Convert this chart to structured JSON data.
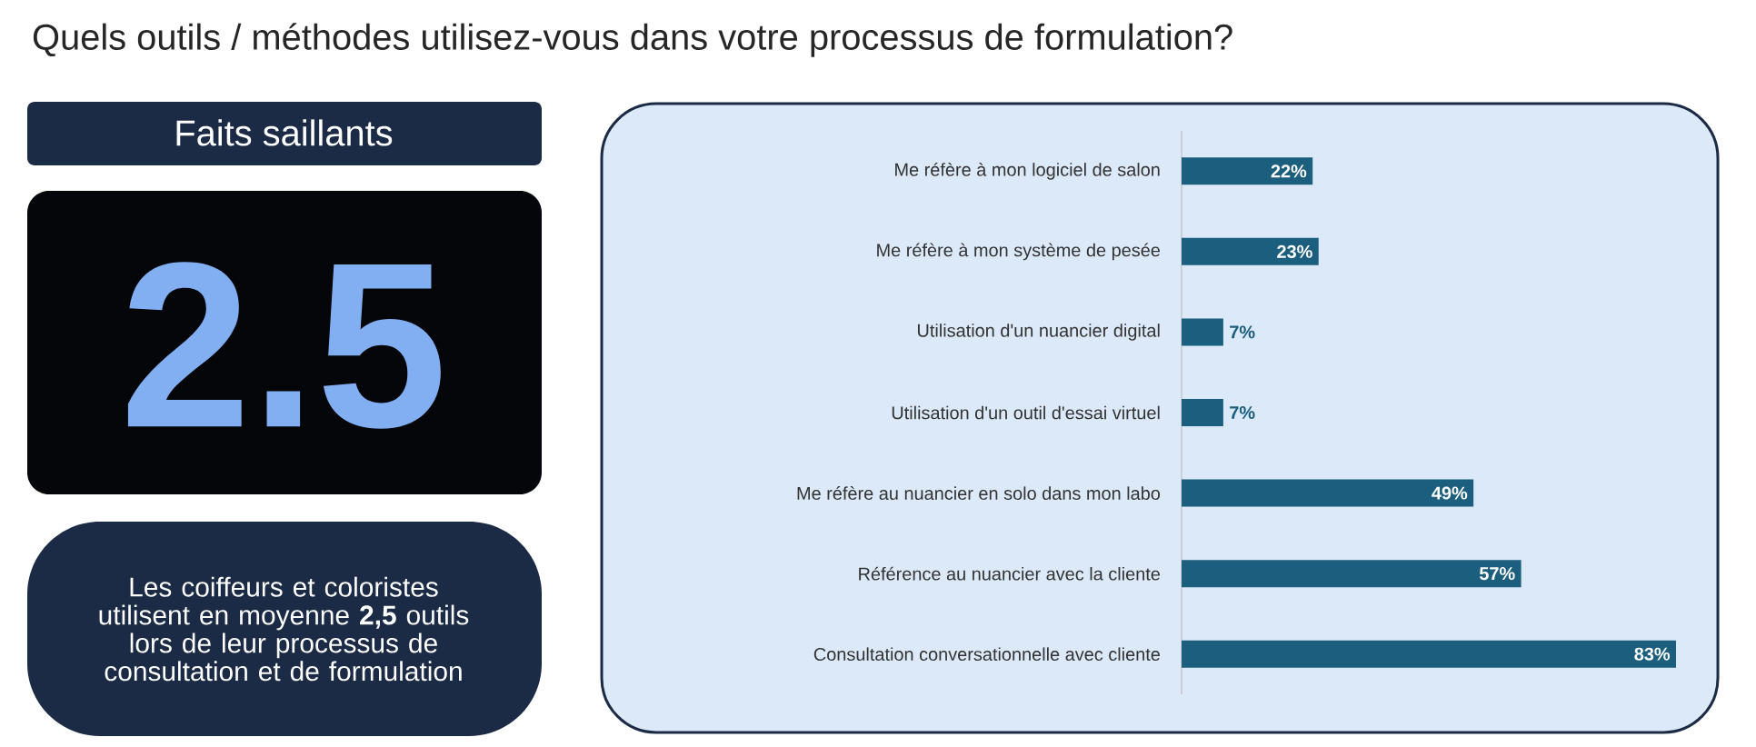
{
  "chart_data": {
    "type": "bar",
    "orientation": "horizontal",
    "title": "Quels outils / méthodes utilisez-vous dans votre processus de formulation?",
    "annotations": [
      "Faits saillants",
      "2.5",
      "Les coiffeurs et coloristes utilisent en moyenne **2,5** outils lors de leur processus de consultation et de formulation"
    ],
    "categories": [
      "Me réfère à mon logiciel de salon",
      "Me réfère à mon système de pesée",
      "Utilisation d'un nuancier digital",
      "Utilisation d'un outil d'essai virtuel",
      "Me réfère au nuancier en solo dans mon labo",
      "Référence au nuancier avec la cliente",
      "Consultation conversationnelle avec cliente"
    ],
    "values": [
      22,
      23,
      7,
      7,
      49,
      57,
      83
    ],
    "value_labels": [
      "22%",
      "23%",
      "7%",
      "7%",
      "49%",
      "57%",
      "83%"
    ],
    "color": "#1b5e7e"
  }
}
